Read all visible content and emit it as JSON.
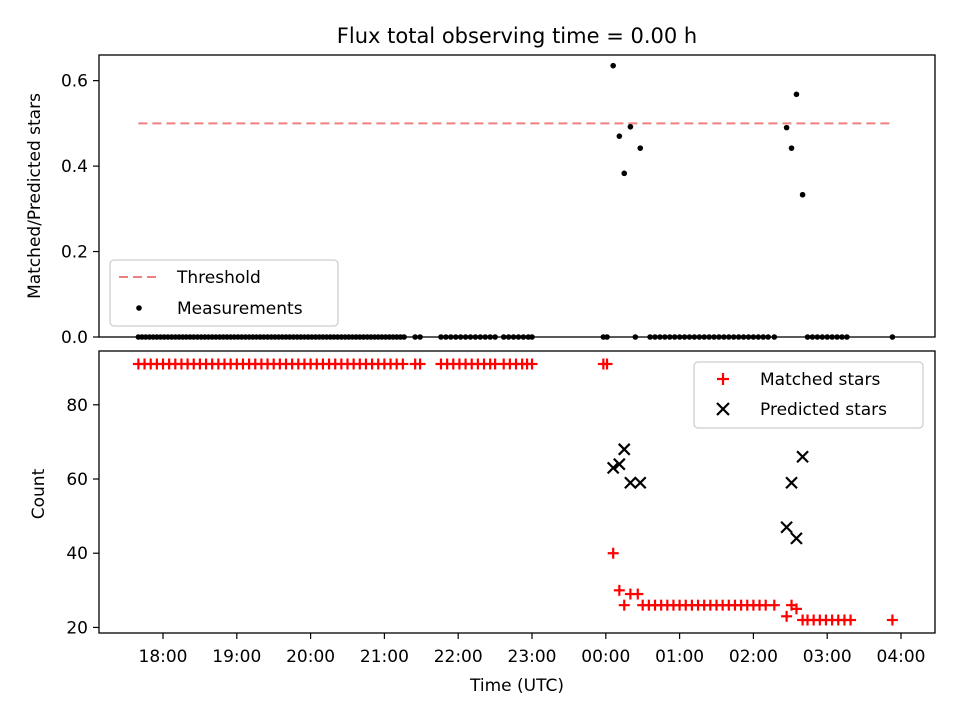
{
  "chart_data": [
    {
      "type": "scatter",
      "title": "Flux total observing time = 0.00 h",
      "xlabel": "",
      "ylabel": "Matched/Predicted stars",
      "ylim": [
        0,
        0.66
      ],
      "yticks": [
        0.0,
        0.2,
        0.4,
        0.6
      ],
      "ytick_labels": [
        "0.0",
        "0.2",
        "0.4",
        "0.6"
      ],
      "legend_position": "lower-left",
      "threshold": {
        "name": "Threshold",
        "value": 0.5,
        "x_range": [
          "17:40",
          "03:53"
        ],
        "color": "#f08080"
      },
      "series": [
        {
          "name": "Measurements",
          "color": "#000000",
          "points": [
            [
              "17:40",
              0
            ],
            [
              "17:43",
              0
            ],
            [
              "17:46",
              0
            ],
            [
              "17:49",
              0
            ],
            [
              "17:52",
              0
            ],
            [
              "17:55",
              0
            ],
            [
              "17:58",
              0
            ],
            [
              "18:01",
              0
            ],
            [
              "18:04",
              0
            ],
            [
              "18:07",
              0
            ],
            [
              "18:10",
              0
            ],
            [
              "18:13",
              0
            ],
            [
              "18:16",
              0
            ],
            [
              "18:19",
              0
            ],
            [
              "18:22",
              0
            ],
            [
              "18:25",
              0
            ],
            [
              "18:28",
              0
            ],
            [
              "18:31",
              0
            ],
            [
              "18:34",
              0
            ],
            [
              "18:37",
              0
            ],
            [
              "18:40",
              0
            ],
            [
              "18:43",
              0
            ],
            [
              "18:46",
              0
            ],
            [
              "18:49",
              0
            ],
            [
              "18:52",
              0
            ],
            [
              "18:55",
              0
            ],
            [
              "18:58",
              0
            ],
            [
              "19:01",
              0
            ],
            [
              "19:04",
              0
            ],
            [
              "19:07",
              0
            ],
            [
              "19:10",
              0
            ],
            [
              "19:13",
              0
            ],
            [
              "19:16",
              0
            ],
            [
              "19:19",
              0
            ],
            [
              "19:22",
              0
            ],
            [
              "19:25",
              0
            ],
            [
              "19:28",
              0
            ],
            [
              "19:31",
              0
            ],
            [
              "19:34",
              0
            ],
            [
              "19:37",
              0
            ],
            [
              "19:40",
              0
            ],
            [
              "19:43",
              0
            ],
            [
              "19:46",
              0
            ],
            [
              "19:49",
              0
            ],
            [
              "19:52",
              0
            ],
            [
              "19:55",
              0
            ],
            [
              "19:58",
              0
            ],
            [
              "20:01",
              0
            ],
            [
              "20:04",
              0
            ],
            [
              "20:07",
              0
            ],
            [
              "20:10",
              0
            ],
            [
              "20:13",
              0
            ],
            [
              "20:16",
              0
            ],
            [
              "20:19",
              0
            ],
            [
              "20:22",
              0
            ],
            [
              "20:25",
              0
            ],
            [
              "20:28",
              0
            ],
            [
              "20:31",
              0
            ],
            [
              "20:34",
              0
            ],
            [
              "20:37",
              0
            ],
            [
              "20:40",
              0
            ],
            [
              "20:43",
              0
            ],
            [
              "20:46",
              0
            ],
            [
              "20:49",
              0
            ],
            [
              "20:52",
              0
            ],
            [
              "20:55",
              0
            ],
            [
              "20:58",
              0
            ],
            [
              "21:01",
              0
            ],
            [
              "21:04",
              0
            ],
            [
              "21:07",
              0
            ],
            [
              "21:10",
              0
            ],
            [
              "21:13",
              0
            ],
            [
              "21:16",
              0
            ],
            [
              "21:25",
              0
            ],
            [
              "21:29",
              0
            ],
            [
              "21:46",
              0
            ],
            [
              "21:50",
              0
            ],
            [
              "21:54",
              0
            ],
            [
              "21:58",
              0
            ],
            [
              "22:02",
              0
            ],
            [
              "22:06",
              0
            ],
            [
              "22:10",
              0
            ],
            [
              "22:14",
              0
            ],
            [
              "22:18",
              0
            ],
            [
              "22:22",
              0
            ],
            [
              "22:26",
              0
            ],
            [
              "22:30",
              0
            ],
            [
              "22:37",
              0
            ],
            [
              "22:41",
              0
            ],
            [
              "22:45",
              0
            ],
            [
              "22:49",
              0
            ],
            [
              "22:53",
              0
            ],
            [
              "22:57",
              0
            ],
            [
              "23:00",
              0
            ],
            [
              "23:58",
              0
            ],
            [
              "00:01",
              0
            ],
            [
              "00:06",
              0.635
            ],
            [
              "00:11",
              0.47
            ],
            [
              "00:15",
              0.383
            ],
            [
              "00:20",
              0.492
            ],
            [
              "00:24",
              0.0
            ],
            [
              "00:28",
              0.442
            ],
            [
              "00:36",
              0
            ],
            [
              "00:40",
              0
            ],
            [
              "00:44",
              0
            ],
            [
              "00:48",
              0
            ],
            [
              "00:52",
              0
            ],
            [
              "00:56",
              0
            ],
            [
              "01:00",
              0
            ],
            [
              "01:04",
              0
            ],
            [
              "01:08",
              0
            ],
            [
              "01:12",
              0
            ],
            [
              "01:16",
              0
            ],
            [
              "01:20",
              0
            ],
            [
              "01:24",
              0
            ],
            [
              "01:28",
              0
            ],
            [
              "01:32",
              0
            ],
            [
              "01:36",
              0
            ],
            [
              "01:40",
              0
            ],
            [
              "01:44",
              0
            ],
            [
              "01:48",
              0
            ],
            [
              "01:52",
              0
            ],
            [
              "01:56",
              0
            ],
            [
              "02:00",
              0
            ],
            [
              "02:04",
              0
            ],
            [
              "02:08",
              0
            ],
            [
              "02:12",
              0
            ],
            [
              "02:17",
              0
            ],
            [
              "02:27",
              0.49
            ],
            [
              "02:31",
              0.442
            ],
            [
              "02:35",
              0.568
            ],
            [
              "02:40",
              0.333
            ],
            [
              "02:44",
              0
            ],
            [
              "02:48",
              0
            ],
            [
              "02:52",
              0
            ],
            [
              "02:56",
              0
            ],
            [
              "03:00",
              0
            ],
            [
              "03:04",
              0
            ],
            [
              "03:08",
              0
            ],
            [
              "03:12",
              0
            ],
            [
              "03:16",
              0
            ],
            [
              "03:53",
              0
            ]
          ]
        }
      ]
    },
    {
      "type": "scatter",
      "title": "",
      "xlabel": "Time (UTC)",
      "ylabel": "Count",
      "ylim": [
        18.5,
        94.5
      ],
      "yticks": [
        20,
        40,
        60,
        80
      ],
      "ytick_labels": [
        "20",
        "40",
        "60",
        "80"
      ],
      "xticks": [
        "18:00",
        "19:00",
        "20:00",
        "21:00",
        "22:00",
        "23:00",
        "00:00",
        "01:00",
        "02:00",
        "03:00",
        "04:00"
      ],
      "xtick_labels": [
        "18:00",
        "19:00",
        "20:00",
        "21:00",
        "22:00",
        "23:00",
        "00:00",
        "01:00",
        "02:00",
        "03:00",
        "04:00"
      ],
      "legend_position": "upper-right",
      "series": [
        {
          "name": "Matched stars",
          "color": "#ff0000",
          "marker": "plus",
          "points": [
            [
              "17:40",
              91
            ],
            [
              "17:45",
              91
            ],
            [
              "17:50",
              91
            ],
            [
              "17:55",
              91
            ],
            [
              "18:00",
              91
            ],
            [
              "18:05",
              91
            ],
            [
              "18:10",
              91
            ],
            [
              "18:15",
              91
            ],
            [
              "18:20",
              91
            ],
            [
              "18:25",
              91
            ],
            [
              "18:30",
              91
            ],
            [
              "18:35",
              91
            ],
            [
              "18:40",
              91
            ],
            [
              "18:45",
              91
            ],
            [
              "18:50",
              91
            ],
            [
              "18:55",
              91
            ],
            [
              "19:00",
              91
            ],
            [
              "19:05",
              91
            ],
            [
              "19:10",
              91
            ],
            [
              "19:15",
              91
            ],
            [
              "19:20",
              91
            ],
            [
              "19:25",
              91
            ],
            [
              "19:30",
              91
            ],
            [
              "19:35",
              91
            ],
            [
              "19:40",
              91
            ],
            [
              "19:45",
              91
            ],
            [
              "19:50",
              91
            ],
            [
              "19:55",
              91
            ],
            [
              "20:00",
              91
            ],
            [
              "20:05",
              91
            ],
            [
              "20:10",
              91
            ],
            [
              "20:15",
              91
            ],
            [
              "20:20",
              91
            ],
            [
              "20:25",
              91
            ],
            [
              "20:30",
              91
            ],
            [
              "20:35",
              91
            ],
            [
              "20:40",
              91
            ],
            [
              "20:45",
              91
            ],
            [
              "20:50",
              91
            ],
            [
              "20:55",
              91
            ],
            [
              "21:00",
              91
            ],
            [
              "21:05",
              91
            ],
            [
              "21:10",
              91
            ],
            [
              "21:15",
              91
            ],
            [
              "21:25",
              91
            ],
            [
              "21:29",
              91
            ],
            [
              "21:46",
              91
            ],
            [
              "21:51",
              91
            ],
            [
              "21:56",
              91
            ],
            [
              "22:01",
              91
            ],
            [
              "22:06",
              91
            ],
            [
              "22:11",
              91
            ],
            [
              "22:16",
              91
            ],
            [
              "22:21",
              91
            ],
            [
              "22:26",
              91
            ],
            [
              "22:30",
              91
            ],
            [
              "22:37",
              91
            ],
            [
              "22:42",
              91
            ],
            [
              "22:47",
              91
            ],
            [
              "22:52",
              91
            ],
            [
              "22:56",
              91
            ],
            [
              "23:00",
              91
            ],
            [
              "23:58",
              91
            ],
            [
              "00:01",
              91
            ],
            [
              "00:06",
              40
            ],
            [
              "00:11",
              30
            ],
            [
              "00:15",
              26
            ],
            [
              "00:20",
              29
            ],
            [
              "00:26",
              29
            ],
            [
              "00:30",
              26
            ],
            [
              "00:35",
              26
            ],
            [
              "00:40",
              26
            ],
            [
              "00:45",
              26
            ],
            [
              "00:50",
              26
            ],
            [
              "00:55",
              26
            ],
            [
              "01:00",
              26
            ],
            [
              "01:05",
              26
            ],
            [
              "01:10",
              26
            ],
            [
              "01:15",
              26
            ],
            [
              "01:20",
              26
            ],
            [
              "01:25",
              26
            ],
            [
              "01:30",
              26
            ],
            [
              "01:35",
              26
            ],
            [
              "01:40",
              26
            ],
            [
              "01:45",
              26
            ],
            [
              "01:50",
              26
            ],
            [
              "01:55",
              26
            ],
            [
              "02:00",
              26
            ],
            [
              "02:05",
              26
            ],
            [
              "02:10",
              26
            ],
            [
              "02:17",
              26
            ],
            [
              "02:27",
              23
            ],
            [
              "02:31",
              26
            ],
            [
              "02:35",
              25
            ],
            [
              "02:40",
              22
            ],
            [
              "02:44",
              22
            ],
            [
              "02:49",
              22
            ],
            [
              "02:54",
              22
            ],
            [
              "02:59",
              22
            ],
            [
              "03:04",
              22
            ],
            [
              "03:09",
              22
            ],
            [
              "03:14",
              22
            ],
            [
              "03:19",
              22
            ],
            [
              "03:53",
              22
            ]
          ]
        },
        {
          "name": "Predicted stars",
          "color": "#000000",
          "marker": "x",
          "points": [
            [
              "00:06",
              63
            ],
            [
              "00:11",
              64
            ],
            [
              "00:15",
              68
            ],
            [
              "00:20",
              59
            ],
            [
              "00:28",
              59
            ],
            [
              "02:27",
              47
            ],
            [
              "02:31",
              59
            ],
            [
              "02:35",
              44
            ],
            [
              "02:40",
              66
            ]
          ]
        }
      ]
    }
  ]
}
